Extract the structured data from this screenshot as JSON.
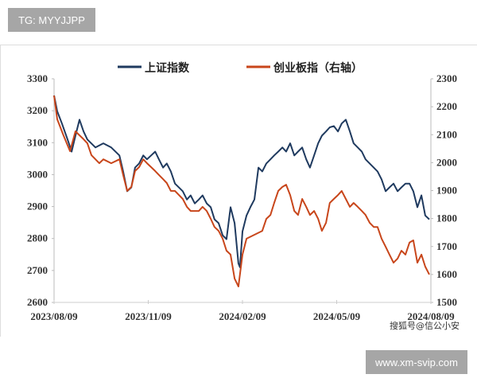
{
  "watermark_top": "TG: MYYJJPP",
  "watermark_bottom": "www.xm-svip.com",
  "source_note": "搜狐号@信公小安",
  "chart_data": {
    "type": "line",
    "title": "",
    "legend_position": "top",
    "x_unit": "months since 2023/08/09",
    "xlim": [
      0,
      12
    ],
    "x_ticks": [
      {
        "m": 0,
        "label": "2023/08/09"
      },
      {
        "m": 3,
        "label": "2023/11/09"
      },
      {
        "m": 6,
        "label": "2024/02/09"
      },
      {
        "m": 9,
        "label": "2024/05/09"
      },
      {
        "m": 12,
        "label": "2024/08/09"
      }
    ],
    "y_left": {
      "lim": [
        2600,
        3300
      ],
      "ticks": [
        "3300",
        "3200",
        "3100",
        "3000",
        "2900",
        "2800",
        "2700",
        "2600"
      ]
    },
    "y_right": {
      "lim": [
        1500,
        2300
      ],
      "ticks": [
        "2300",
        "2200",
        "2100",
        "2000",
        "1900",
        "1800",
        "1700",
        "1600",
        "1500"
      ]
    },
    "grid": false,
    "series": [
      {
        "name": "上证指数",
        "axis": "left",
        "color": "#1f3a5f",
        "points": [
          [
            0,
            3248
          ],
          [
            0.1,
            3198
          ],
          [
            0.25,
            3160
          ],
          [
            0.43,
            3110
          ],
          [
            0.56,
            3072
          ],
          [
            0.68,
            3122
          ],
          [
            0.81,
            3172
          ],
          [
            0.94,
            3135
          ],
          [
            1.06,
            3110
          ],
          [
            1.32,
            3085
          ],
          [
            1.57,
            3098
          ],
          [
            1.82,
            3085
          ],
          [
            2.08,
            3060
          ],
          [
            2.2,
            3010
          ],
          [
            2.33,
            2948
          ],
          [
            2.46,
            2960
          ],
          [
            2.58,
            3022
          ],
          [
            2.71,
            3035
          ],
          [
            2.84,
            3060
          ],
          [
            2.96,
            3048
          ],
          [
            3.09,
            3060
          ],
          [
            3.22,
            3072
          ],
          [
            3.34,
            3048
          ],
          [
            3.47,
            3022
          ],
          [
            3.59,
            3035
          ],
          [
            3.72,
            3010
          ],
          [
            3.85,
            2972
          ],
          [
            4.1,
            2948
          ],
          [
            4.23,
            2922
          ],
          [
            4.35,
            2935
          ],
          [
            4.48,
            2910
          ],
          [
            4.61,
            2922
          ],
          [
            4.73,
            2935
          ],
          [
            4.86,
            2910
          ],
          [
            4.99,
            2898
          ],
          [
            5.11,
            2860
          ],
          [
            5.24,
            2848
          ],
          [
            5.37,
            2810
          ],
          [
            5.49,
            2798
          ],
          [
            5.62,
            2898
          ],
          [
            5.75,
            2848
          ],
          [
            5.87,
            2722
          ],
          [
            5.92,
            2710
          ],
          [
            6.0,
            2822
          ],
          [
            6.13,
            2872
          ],
          [
            6.25,
            2898
          ],
          [
            6.38,
            2922
          ],
          [
            6.51,
            3022
          ],
          [
            6.63,
            3010
          ],
          [
            6.76,
            3035
          ],
          [
            6.89,
            3048
          ],
          [
            7.01,
            3060
          ],
          [
            7.14,
            3072
          ],
          [
            7.27,
            3085
          ],
          [
            7.39,
            3072
          ],
          [
            7.52,
            3098
          ],
          [
            7.65,
            3060
          ],
          [
            7.77,
            3072
          ],
          [
            7.9,
            3085
          ],
          [
            8.03,
            3048
          ],
          [
            8.15,
            3022
          ],
          [
            8.28,
            3060
          ],
          [
            8.41,
            3098
          ],
          [
            8.53,
            3122
          ],
          [
            8.66,
            3135
          ],
          [
            8.78,
            3148
          ],
          [
            8.91,
            3152
          ],
          [
            9.04,
            3135
          ],
          [
            9.16,
            3160
          ],
          [
            9.29,
            3172
          ],
          [
            9.42,
            3135
          ],
          [
            9.54,
            3098
          ],
          [
            9.67,
            3085
          ],
          [
            9.8,
            3072
          ],
          [
            9.92,
            3048
          ],
          [
            10.05,
            3035
          ],
          [
            10.18,
            3022
          ],
          [
            10.3,
            3010
          ],
          [
            10.43,
            2985
          ],
          [
            10.56,
            2948
          ],
          [
            10.68,
            2960
          ],
          [
            10.81,
            2972
          ],
          [
            10.94,
            2948
          ],
          [
            11.06,
            2960
          ],
          [
            11.19,
            2972
          ],
          [
            11.32,
            2972
          ],
          [
            11.44,
            2948
          ],
          [
            11.57,
            2898
          ],
          [
            11.7,
            2935
          ],
          [
            11.82,
            2872
          ],
          [
            11.95,
            2860
          ]
        ]
      },
      {
        "name": "创业板指（右轴）",
        "axis": "right",
        "color": "#c8461b",
        "points": [
          [
            0,
            2240
          ],
          [
            0.1,
            2155
          ],
          [
            0.3,
            2098
          ],
          [
            0.51,
            2041
          ],
          [
            0.68,
            2112
          ],
          [
            0.81,
            2098
          ],
          [
            0.94,
            2084
          ],
          [
            1.06,
            2069
          ],
          [
            1.19,
            2027
          ],
          [
            1.32,
            2012
          ],
          [
            1.44,
            1998
          ],
          [
            1.57,
            2012
          ],
          [
            1.82,
            1998
          ],
          [
            2.08,
            2012
          ],
          [
            2.2,
            1956
          ],
          [
            2.33,
            1899
          ],
          [
            2.46,
            1913
          ],
          [
            2.58,
            1970
          ],
          [
            2.71,
            1984
          ],
          [
            2.84,
            2012
          ],
          [
            2.96,
            1998
          ],
          [
            3.09,
            1984
          ],
          [
            3.22,
            1970
          ],
          [
            3.34,
            1956
          ],
          [
            3.47,
            1941
          ],
          [
            3.59,
            1927
          ],
          [
            3.72,
            1899
          ],
          [
            3.85,
            1899
          ],
          [
            4.1,
            1870
          ],
          [
            4.23,
            1842
          ],
          [
            4.35,
            1827
          ],
          [
            4.61,
            1827
          ],
          [
            4.73,
            1842
          ],
          [
            4.86,
            1827
          ],
          [
            4.99,
            1799
          ],
          [
            5.11,
            1770
          ],
          [
            5.24,
            1756
          ],
          [
            5.37,
            1728
          ],
          [
            5.49,
            1685
          ],
          [
            5.62,
            1671
          ],
          [
            5.75,
            1585
          ],
          [
            5.87,
            1557
          ],
          [
            6.0,
            1671
          ],
          [
            6.13,
            1728
          ],
          [
            6.38,
            1742
          ],
          [
            6.63,
            1756
          ],
          [
            6.76,
            1799
          ],
          [
            6.89,
            1813
          ],
          [
            7.01,
            1856
          ],
          [
            7.14,
            1899
          ],
          [
            7.27,
            1913
          ],
          [
            7.39,
            1921
          ],
          [
            7.52,
            1884
          ],
          [
            7.65,
            1827
          ],
          [
            7.77,
            1813
          ],
          [
            7.9,
            1870
          ],
          [
            8.03,
            1842
          ],
          [
            8.15,
            1813
          ],
          [
            8.28,
            1827
          ],
          [
            8.41,
            1799
          ],
          [
            8.53,
            1756
          ],
          [
            8.66,
            1785
          ],
          [
            8.78,
            1856
          ],
          [
            8.91,
            1870
          ],
          [
            9.04,
            1884
          ],
          [
            9.16,
            1899
          ],
          [
            9.29,
            1870
          ],
          [
            9.42,
            1842
          ],
          [
            9.54,
            1856
          ],
          [
            9.67,
            1842
          ],
          [
            9.8,
            1827
          ],
          [
            9.92,
            1813
          ],
          [
            10.05,
            1785
          ],
          [
            10.18,
            1770
          ],
          [
            10.3,
            1770
          ],
          [
            10.43,
            1728
          ],
          [
            10.56,
            1699
          ],
          [
            10.68,
            1671
          ],
          [
            10.81,
            1642
          ],
          [
            10.94,
            1657
          ],
          [
            11.06,
            1685
          ],
          [
            11.19,
            1671
          ],
          [
            11.32,
            1714
          ],
          [
            11.44,
            1722
          ],
          [
            11.57,
            1642
          ],
          [
            11.7,
            1671
          ],
          [
            11.82,
            1628
          ],
          [
            11.95,
            1600
          ]
        ]
      }
    ]
  }
}
